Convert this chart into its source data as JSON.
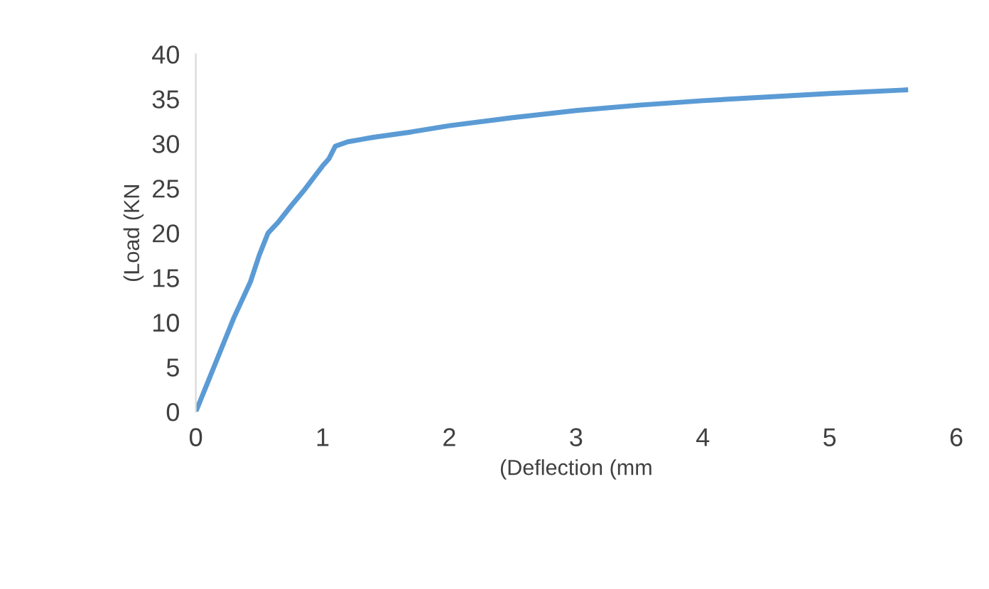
{
  "chart_data": {
    "type": "line",
    "xlabel": "(Deflection (mm",
    "ylabel": "(Load (KN",
    "xlim": [
      0,
      6
    ],
    "xticks": [
      0,
      1,
      2,
      3,
      4,
      5,
      6
    ],
    "ylim": [
      0,
      40
    ],
    "yticks": [
      0,
      5,
      10,
      15,
      20,
      25,
      30,
      35,
      40
    ],
    "grid": false,
    "legend": false,
    "marker": "none",
    "line_style": "solid",
    "series": [
      {
        "color": "#5b9bd5",
        "x": [
          0,
          0.1,
          0.2,
          0.3,
          0.43,
          0.5,
          0.57,
          0.65,
          0.75,
          0.85,
          1.0,
          1.05,
          1.1,
          1.2,
          1.4,
          1.7,
          2.0,
          2.5,
          3.0,
          3.5,
          4.0,
          4.5,
          5.0,
          5.6
        ],
        "values": [
          0,
          3.5,
          7,
          10.5,
          14.5,
          17.5,
          20,
          21.2,
          23,
          24.7,
          27.5,
          28.3,
          29.7,
          30.2,
          30.7,
          31.3,
          32,
          32.9,
          33.7,
          34.3,
          34.8,
          35.2,
          35.6,
          36
        ]
      }
    ]
  }
}
